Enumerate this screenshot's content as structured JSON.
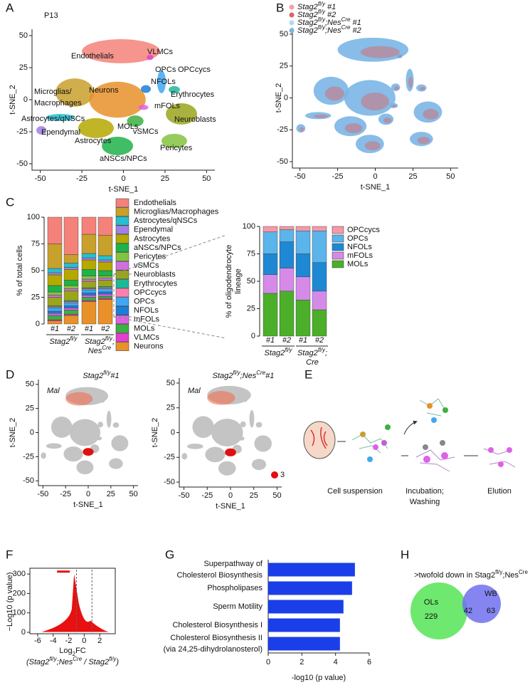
{
  "panel_labels": [
    "A",
    "B",
    "C",
    "D",
    "E",
    "F",
    "G",
    "H"
  ],
  "panel_a": {
    "title": "P13",
    "xlabel": "t-SNE_1",
    "ylabel": "t-SNE_2",
    "xlim": [
      -55,
      55
    ],
    "ylim": [
      -55,
      55
    ],
    "xticks": [
      -50,
      -25,
      0,
      25,
      50
    ],
    "yticks": [
      -50,
      -25,
      0,
      25,
      50
    ],
    "cluster_labels": [
      "Endothelials",
      "VLMCs",
      "OPCs",
      "OPCcycs",
      "NFOLs",
      "Erythrocytes",
      "Microglias/",
      "Macrophages",
      "Neurons",
      "mFOLs",
      "Astrocytes/qNSCs",
      "Ependymal",
      "MOLs",
      "Neuroblasts",
      "vSMCs",
      "Astrocytes",
      "Pericytes",
      "aNSCs/NPCs"
    ]
  },
  "panel_b": {
    "xlabel": "t-SNE_1",
    "ylabel": "t-SNE_2",
    "xlim": [
      -55,
      55
    ],
    "ylim": [
      -55,
      55
    ],
    "xticks": [
      -50,
      -25,
      0,
      25,
      50
    ],
    "yticks": [
      -50,
      -25,
      0,
      25,
      50
    ],
    "legend": [
      {
        "name": [
          "Stag2",
          "fl/y",
          " #1"
        ],
        "color": "#f4a0a0"
      },
      {
        "name": [
          "Stag2",
          "fl/y",
          " #2"
        ],
        "color": "#e06060"
      },
      {
        "name": [
          "Stag2",
          "fl/y",
          ";Nes",
          "Cre",
          " #1"
        ],
        "color": "#b4d6f2"
      },
      {
        "name": [
          "Stag2",
          "fl/y",
          ";Nes",
          "Cre",
          " #2"
        ],
        "color": "#7ab6e6"
      }
    ]
  },
  "panel_c": {
    "ylabel": "% of total cells",
    "ylim": [
      0,
      100
    ],
    "yticks": [
      0,
      25,
      50,
      75,
      100
    ],
    "bar_labels": [
      "#1",
      "#2",
      "#1",
      "#2"
    ],
    "groups": [
      [
        [
          "Stag2",
          "fl/y"
        ]
      ],
      [
        [
          "Stag2",
          "fl/y",
          ";"
        ],
        [
          "Nes",
          "Cre"
        ]
      ]
    ],
    "series": [
      {
        "name": "Endothelials",
        "color": "#f4827a",
        "values": [
          25,
          35,
          16,
          17
        ]
      },
      {
        "name": "Microglias/Macrophages",
        "color": "#c8a02c",
        "values": [
          23,
          8,
          18,
          19
        ]
      },
      {
        "name": "Astrocytes/qNSCs",
        "color": "#27bfd0",
        "values": [
          4,
          4,
          4,
          4
        ]
      },
      {
        "name": "Ependymal",
        "color": "#a080e0",
        "values": [
          2,
          2,
          2,
          2
        ]
      },
      {
        "name": "Astrocytes",
        "color": "#b5a800",
        "values": [
          10,
          10,
          9,
          8
        ]
      },
      {
        "name": "aNSCs/NPCs",
        "color": "#1fb24a",
        "values": [
          6,
          5,
          6,
          5
        ]
      },
      {
        "name": "Pericytes",
        "color": "#84c340",
        "values": [
          3,
          3,
          3,
          2
        ]
      },
      {
        "name": "vSMCs",
        "color": "#d070e0",
        "values": [
          2,
          2,
          2,
          2
        ]
      },
      {
        "name": "Neuroblasts",
        "color": "#9aa51c",
        "values": [
          8,
          9,
          6,
          6
        ]
      },
      {
        "name": "Erythrocytes",
        "color": "#1ab99a",
        "values": [
          1,
          1,
          1,
          1
        ]
      },
      {
        "name": "OPCcycs",
        "color": "#ff7fb0",
        "values": [
          1,
          1,
          1,
          1
        ]
      },
      {
        "name": "OPCs",
        "color": "#40a8f0",
        "values": [
          3,
          3,
          3,
          3
        ]
      },
      {
        "name": "NFOLs",
        "color": "#1a7fd8",
        "values": [
          2,
          2,
          2,
          2
        ]
      },
      {
        "name": "mFOLs",
        "color": "#e060e8",
        "values": [
          2,
          2,
          2,
          2
        ]
      },
      {
        "name": "MOLs",
        "color": "#3db040",
        "values": [
          4,
          4,
          3,
          2
        ]
      },
      {
        "name": "VLMCs",
        "color": "#e43fd0",
        "values": [
          1,
          1,
          1,
          1
        ]
      },
      {
        "name": "Neurons",
        "color": "#e8902a",
        "values": [
          3,
          8,
          21,
          23
        ]
      }
    ]
  },
  "panel_c_ol": {
    "ylabel": [
      "% of oligodendrocyte",
      "lineage"
    ],
    "ylim": [
      0,
      100
    ],
    "yticks": [
      0,
      25,
      50,
      75,
      100
    ],
    "bar_labels": [
      "#1",
      "#2",
      "#1",
      "#2"
    ],
    "groups": [
      [
        [
          "Stag2",
          "fl/y"
        ]
      ],
      [
        [
          "Stag2",
          "fl/y",
          ";"
        ],
        [
          "Cre"
        ]
      ]
    ],
    "series": [
      {
        "name": "OPCcycs",
        "color": "#f59aa8",
        "values": [
          5,
          3,
          4,
          4
        ]
      },
      {
        "name": "OPCs",
        "color": "#5bb4ea",
        "values": [
          20,
          11,
          21,
          29
        ]
      },
      {
        "name": "NFOLs",
        "color": "#1e88d4",
        "values": [
          19,
          24,
          21,
          26
        ]
      },
      {
        "name": "mFOLs",
        "color": "#d58ae8",
        "values": [
          17,
          21,
          21,
          17
        ]
      },
      {
        "name": "MOLs",
        "color": "#4caf2a",
        "values": [
          39,
          41,
          33,
          24
        ]
      }
    ]
  },
  "panel_d": {
    "plots": [
      {
        "gene": "Mal",
        "title": [
          "Stag2",
          "fl/y",
          "#1"
        ],
        "xlabel": "t-SNE_1",
        "ylabel": "t-SNE_2",
        "xlim": [
          -55,
          55
        ],
        "ylim": [
          -55,
          55
        ],
        "xticks": [
          -50,
          -25,
          0,
          25,
          50
        ],
        "yticks": [
          -50,
          -25,
          0,
          25,
          50
        ]
      },
      {
        "gene": "Mal",
        "title": [
          "Stag2",
          "fl/y",
          ";Nes",
          "Cre",
          "#1"
        ],
        "xlabel": "t-SNE_1",
        "ylabel": "t-SNE_2",
        "xlim": [
          -55,
          55
        ],
        "ylim": [
          -55,
          55
        ],
        "xticks": [
          -50,
          -25,
          0,
          25,
          50
        ],
        "yticks": [
          -50,
          -25,
          0,
          25,
          50
        ]
      }
    ],
    "legend_value": 3
  },
  "panel_e": {
    "steps": [
      [
        "Cell suspension"
      ],
      [
        "Incubation;",
        "Washing"
      ],
      [
        "Elution"
      ]
    ]
  },
  "panel_f": {
    "ylabel": "−Log10 (p value)",
    "xlabel": [
      "Log",
      "2",
      "FC"
    ],
    "xlabel2": [
      "(Stag2",
      "fl/y",
      ";Nes",
      "Cre",
      " / Stag2",
      "fl/y",
      ")"
    ],
    "xlim": [
      -7,
      4
    ],
    "ylim": [
      0,
      330
    ],
    "xticks": [
      -6,
      -4,
      -2,
      0,
      2
    ],
    "yticks": [
      0,
      100,
      200,
      300
    ]
  },
  "panel_g": {
    "categories": [
      [
        "Superpathway of",
        "Cholesterol Biosynthesis"
      ],
      [
        "Phospholipases"
      ],
      [
        "Sperm Motility"
      ],
      [
        "Cholesterol Biosynthesis I"
      ],
      [
        "Cholesterol Biosynthesis II",
        "(via 24,25-dihydrolanosterol)"
      ]
    ],
    "values": [
      5.15,
      4.98,
      4.47,
      4.26,
      4.26
    ],
    "color": "#1a3fe8",
    "xlim": [
      0,
      6
    ],
    "xticks": [
      0,
      2,
      4,
      6
    ],
    "xlabel": "-log10 (p value)"
  },
  "panel_h": {
    "title": [
      ">twofold down in Stag2",
      "fl/y",
      ";Nes",
      "Cre"
    ],
    "sets": [
      {
        "name": "OLs",
        "only": 229,
        "color": "#6ee86e"
      },
      {
        "name": "WB",
        "only": 63,
        "color": "#7070ee"
      }
    ],
    "overlap": 42
  }
}
